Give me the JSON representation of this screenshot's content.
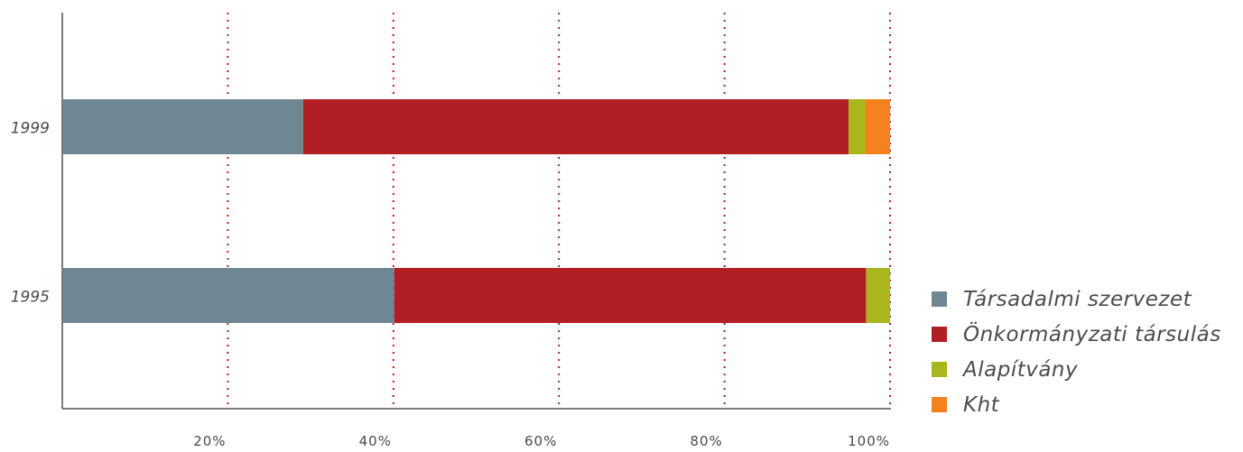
{
  "chart_data": {
    "type": "bar",
    "orientation": "horizontal",
    "stacked": true,
    "normalized_percent": true,
    "categories": [
      "1999",
      "1995"
    ],
    "series": [
      {
        "name": "Társadalmi szervezet",
        "color": "#6f8792",
        "values": [
          29.1,
          40.1
        ]
      },
      {
        "name": "Önkormányzati társulás",
        "color": "#b11f25",
        "values": [
          65.9,
          57.0
        ]
      },
      {
        "name": "Alapítvány",
        "color": "#a9b61e",
        "values": [
          2.0,
          2.9
        ]
      },
      {
        "name": "Kht",
        "color": "#f5821f",
        "values": [
          3.0,
          0.0
        ]
      }
    ],
    "x_ticks": [
      "20%",
      "40%",
      "60%",
      "80%",
      "100%"
    ],
    "x_tick_values": [
      20,
      40,
      60,
      80,
      100
    ],
    "xlim": [
      0,
      100
    ],
    "grid": "vertical dotted",
    "grid_color": "#b11f25",
    "legend_position": "right"
  }
}
